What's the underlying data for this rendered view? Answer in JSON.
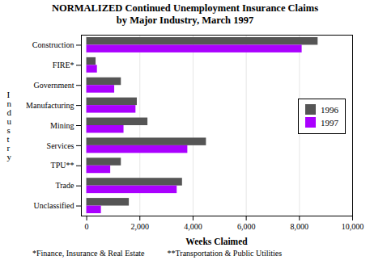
{
  "chart_data": {
    "type": "bar",
    "orientation": "horizontal",
    "title": "NORMALIZED Continued Unemployment Insurance Claims\nby Major Industry, March 1997",
    "categories": [
      "Construction",
      "FIRE*",
      "Government",
      "Manufacturing",
      "Mining",
      "Services",
      "TPU**",
      "Trade",
      "Unclassified"
    ],
    "series": [
      {
        "name": "1996",
        "color": "#555555",
        "values": [
          8700,
          350,
          1300,
          1900,
          2300,
          4500,
          1300,
          3600,
          1600
        ]
      },
      {
        "name": "1997",
        "color": "#aa00ff",
        "values": [
          8100,
          400,
          1050,
          1850,
          1400,
          3800,
          900,
          3400,
          550
        ]
      }
    ],
    "xlabel": "Weeks Claimed",
    "ylabel": "I\nn\nd\nu\ns\nt\nr\ny",
    "xlim": [
      -200,
      10000
    ],
    "xticks": [
      0,
      {
        "value": 2000,
        "label": "2,000"
      },
      {
        "value": 4000,
        "label": "4,000"
      },
      {
        "value": 6000,
        "label": "6,000"
      },
      {
        "value": 8000,
        "label": "8,000"
      },
      {
        "value": 10000,
        "label": "10,000"
      }
    ],
    "grid": true,
    "legend": "right",
    "annotations": [
      "*Finance, Insurance & Real Estate",
      "**Transportation & Public Utilities"
    ]
  }
}
